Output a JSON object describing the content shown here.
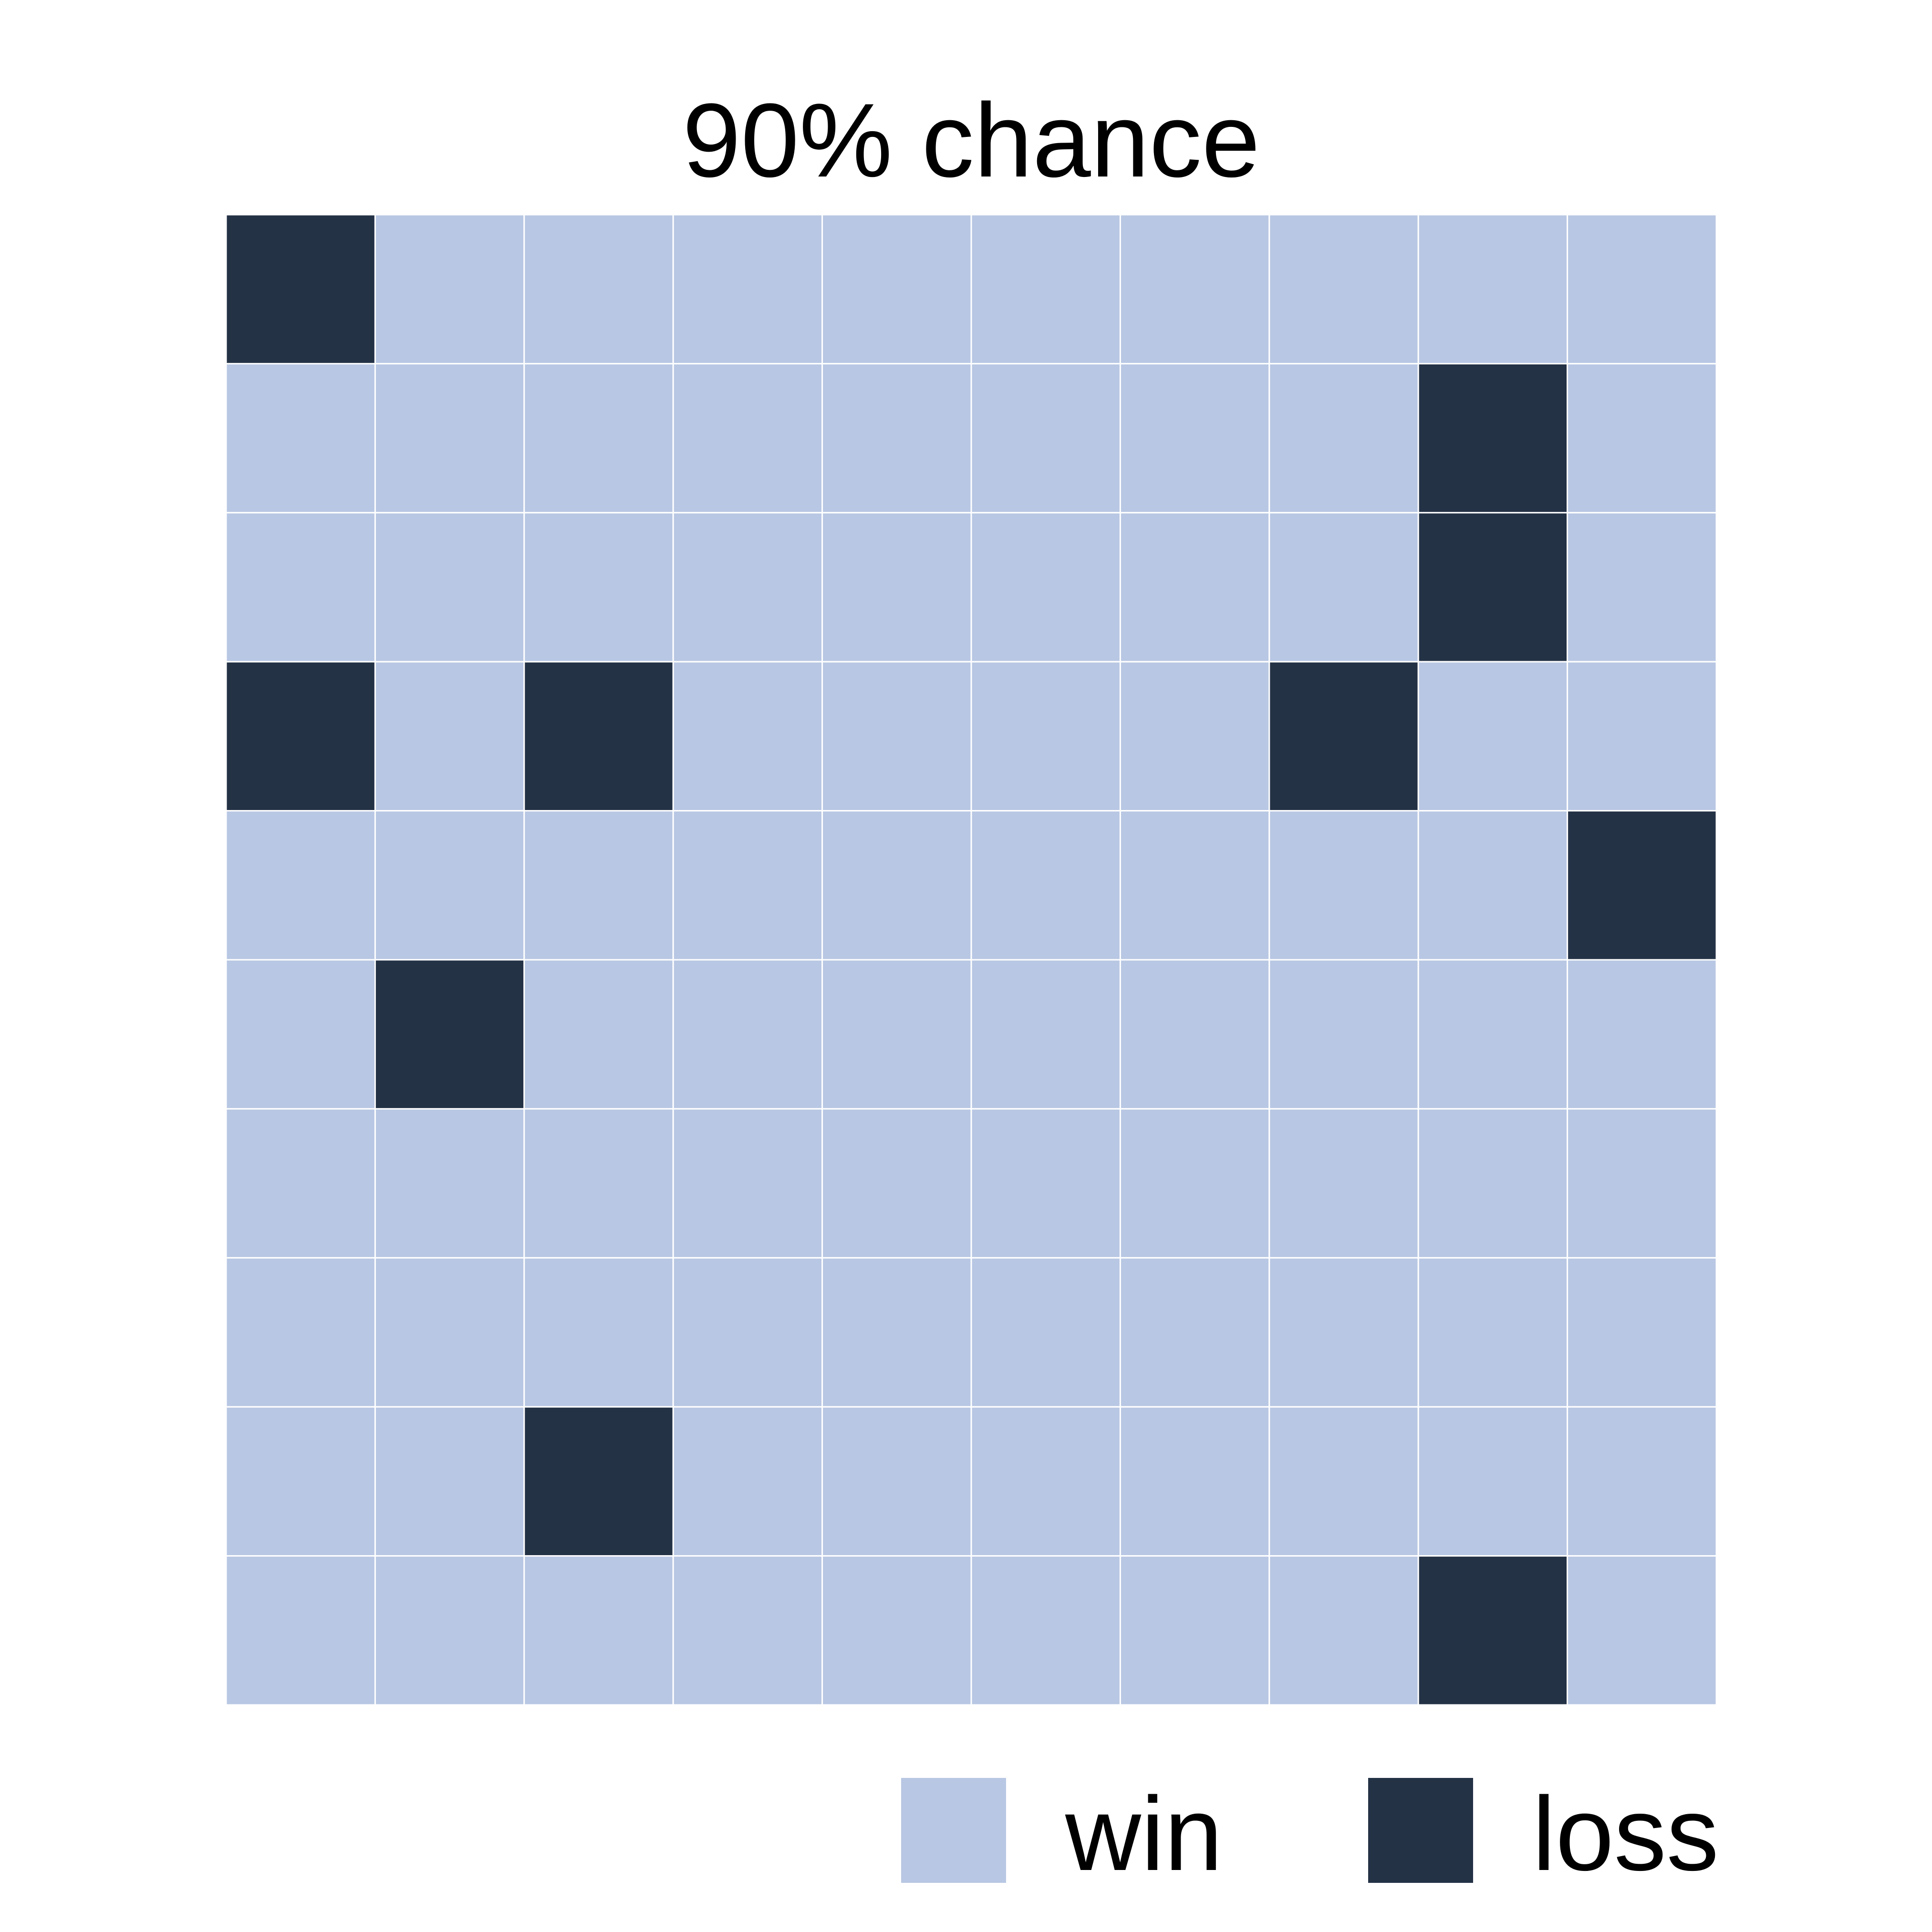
{
  "chart_data": {
    "type": "heatmap",
    "title": "90% chance",
    "rows": 10,
    "cols": 10,
    "grid": [
      [
        "loss",
        "win",
        "win",
        "win",
        "win",
        "win",
        "win",
        "win",
        "win",
        "win"
      ],
      [
        "win",
        "win",
        "win",
        "win",
        "win",
        "win",
        "win",
        "win",
        "loss",
        "win"
      ],
      [
        "win",
        "win",
        "win",
        "win",
        "win",
        "win",
        "win",
        "win",
        "loss",
        "win"
      ],
      [
        "loss",
        "win",
        "loss",
        "win",
        "win",
        "win",
        "win",
        "loss",
        "win",
        "win"
      ],
      [
        "win",
        "win",
        "win",
        "win",
        "win",
        "win",
        "win",
        "win",
        "win",
        "loss"
      ],
      [
        "win",
        "loss",
        "win",
        "win",
        "win",
        "win",
        "win",
        "win",
        "win",
        "win"
      ],
      [
        "win",
        "win",
        "win",
        "win",
        "win",
        "win",
        "win",
        "win",
        "win",
        "win"
      ],
      [
        "win",
        "win",
        "win",
        "win",
        "win",
        "win",
        "win",
        "win",
        "win",
        "win"
      ],
      [
        "win",
        "win",
        "loss",
        "win",
        "win",
        "win",
        "win",
        "win",
        "win",
        "win"
      ],
      [
        "win",
        "win",
        "win",
        "win",
        "win",
        "win",
        "win",
        "win",
        "loss",
        "win"
      ]
    ],
    "legend": {
      "position": "bottom-right",
      "items": [
        {
          "key": "win",
          "label": "win",
          "color": "#b8c7e3"
        },
        {
          "key": "loss",
          "label": "loss",
          "color": "#243246"
        }
      ]
    },
    "grid_line_color": "#ffffff"
  }
}
